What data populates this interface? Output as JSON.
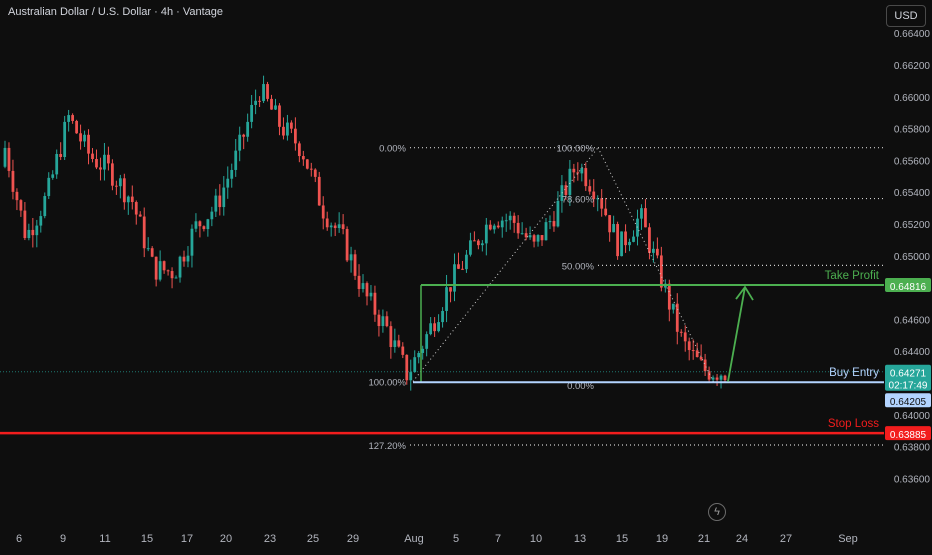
{
  "header": {
    "title": "Australian Dollar / U.S. Dollar · 4h · Vantage",
    "currency_button": "USD"
  },
  "colors": {
    "background": "#0e0e0e",
    "bull": "#26a69a",
    "bear": "#ef5350",
    "take_profit": "#4caf50",
    "stop_loss": "#f21d1d",
    "buy_entry_line": "#b3d4ff",
    "current_price_badge": "#26a69a",
    "fib": "#cfcfcf"
  },
  "icons": {
    "replay": "lightning-icon"
  },
  "chart_data": {
    "type": "candlestick",
    "title": "Australian Dollar / U.S. Dollar · 4h · Vantage",
    "ylim": [
      0.6355,
      0.6645
    ],
    "price_ticks": [
      "0.66400",
      "0.66200",
      "0.66000",
      "0.65800",
      "0.65600",
      "0.65400",
      "0.65200",
      "0.65000",
      "0.64600",
      "0.64400",
      "0.64000",
      "0.63800",
      "0.63600"
    ],
    "time_ticks": [
      "6",
      "9",
      "11",
      "15",
      "17",
      "20",
      "23",
      "25",
      "29",
      "Aug",
      "5",
      "7",
      "10",
      "13",
      "15",
      "19",
      "21",
      "24",
      "27",
      "Sep"
    ],
    "ohlc_anchors": {
      "dates": [
        "Jul 6",
        "Jul 8",
        "Jul 9",
        "Jul 10",
        "Jul 11",
        "Jul 14",
        "Jul 15",
        "Jul 16",
        "Jul 17",
        "Jul 18",
        "Jul 21",
        "Jul 22",
        "Jul 23",
        "Jul 24",
        "Jul 25",
        "Jul 28",
        "Jul 29",
        "Jul 30",
        "Jul 31",
        "Aug 1",
        "Aug 4",
        "Aug 5",
        "Aug 6",
        "Aug 7",
        "Aug 8",
        "Aug 11",
        "Aug 12",
        "Aug 13",
        "Aug 14",
        "Aug 15",
        "Aug 18",
        "Aug 19",
        "Aug 20",
        "Aug 21",
        "Aug 22"
      ],
      "close": [
        0.6568,
        0.6512,
        0.6538,
        0.6587,
        0.6563,
        0.6553,
        0.6535,
        0.6492,
        0.649,
        0.6518,
        0.6532,
        0.6565,
        0.6605,
        0.6582,
        0.6568,
        0.653,
        0.6509,
        0.6475,
        0.6455,
        0.6425,
        0.6452,
        0.6482,
        0.6503,
        0.6525,
        0.6522,
        0.6505,
        0.6528,
        0.6558,
        0.654,
        0.6505,
        0.6525,
        0.6485,
        0.6445,
        0.6428,
        0.6427
      ]
    },
    "current_price": "0.64271",
    "countdown": "02:17:49",
    "fibonacci": [
      {
        "label": "0.00%",
        "value": 0.6568
      },
      {
        "label": "100.00%",
        "value": 0.6421
      },
      {
        "label": "127.20%",
        "value": 0.6381
      },
      {
        "label": "100.00%",
        "value": 0.6568
      },
      {
        "label": "78.60%",
        "value": 0.6536
      },
      {
        "label": "50.00%",
        "value": 0.6494
      },
      {
        "label": "0.00%",
        "value": 0.642
      }
    ],
    "levels": [
      {
        "name": "Take Profit",
        "price": "0.64816"
      },
      {
        "name": "Buy Entry",
        "price": "0.64205"
      },
      {
        "name": "Stop Loss",
        "price": "0.63885"
      }
    ]
  }
}
